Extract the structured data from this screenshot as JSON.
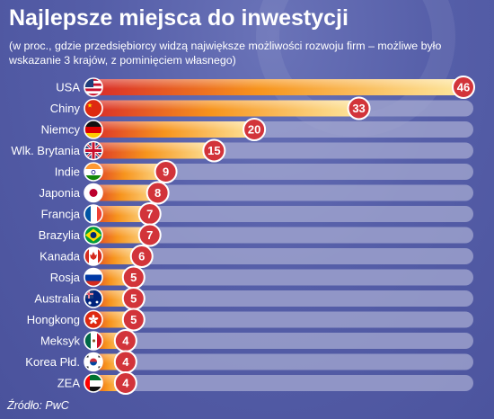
{
  "title": "Najlepsze miejsca do inwestycji",
  "subtitle": "(w proc., gdzie przedsiębiorcy widzą największe możliwości rozwoju firm – możliwe było wskazanie 3 krajów, z pominięciem własnego)",
  "source": "Źródło: PwC",
  "chart_data": {
    "type": "bar",
    "orientation": "horizontal",
    "title": "Najlepsze miejsca do inwestycji",
    "subtitle": "(w proc., gdzie przedsiębiorcy widzą największe możliwości rozwoju firm – możliwe było wskazanie 3 krajów, z pominięciem własnego)",
    "xlim": [
      0,
      46
    ],
    "grid": false,
    "categories": [
      "USA",
      "Chiny",
      "Niemcy",
      "Wlk. Brytania",
      "Indie",
      "Japonia",
      "Francja",
      "Brazylia",
      "Kanada",
      "Rosja",
      "Australia",
      "Hongkong",
      "Meksyk",
      "Korea Płd.",
      "ZEA"
    ],
    "flags": [
      "us-flag-icon",
      "cn-flag-icon",
      "de-flag-icon",
      "gb-flag-icon",
      "in-flag-icon",
      "jp-flag-icon",
      "fr-flag-icon",
      "br-flag-icon",
      "ca-flag-icon",
      "ru-flag-icon",
      "au-flag-icon",
      "hk-flag-icon",
      "mx-flag-icon",
      "kr-flag-icon",
      "ae-flag-icon"
    ],
    "values": [
      46,
      33,
      20,
      15,
      9,
      8,
      7,
      7,
      6,
      5,
      5,
      5,
      4,
      4,
      4
    ],
    "colors": {
      "bar_start": "#d8282a",
      "bar_mid": "#f7941d",
      "bar_end": "#fde9a2",
      "track": "#a6a9d2",
      "badge": "#d2343a",
      "badge_ring": "#ffffff"
    }
  }
}
